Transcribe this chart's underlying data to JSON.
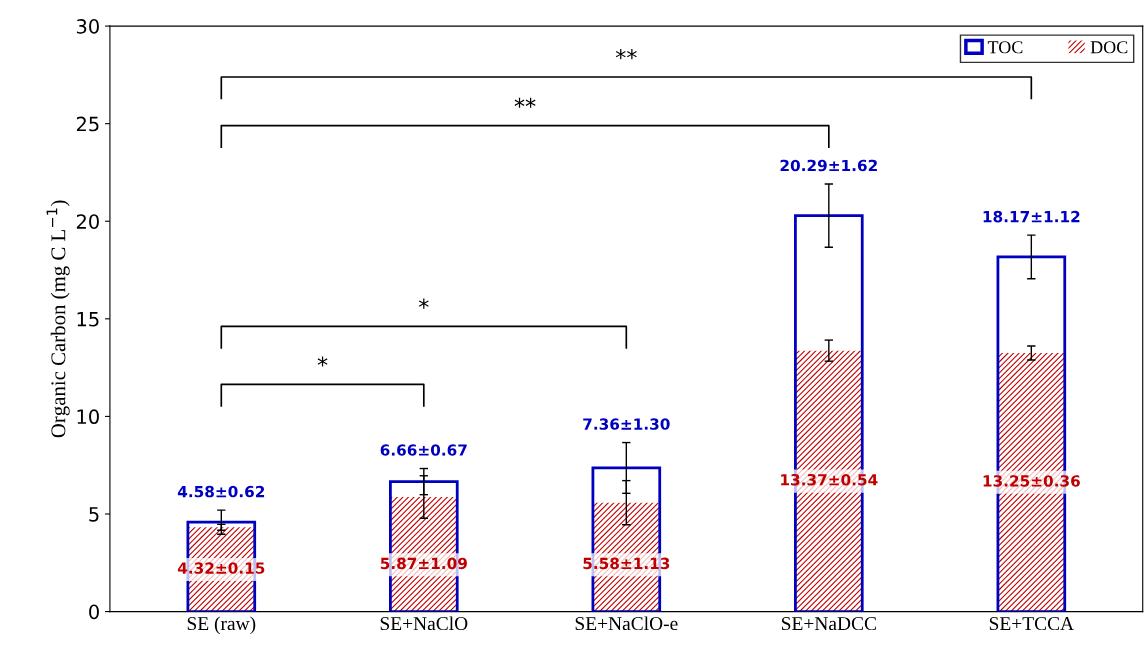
{
  "chart_data": {
    "type": "bar",
    "ylabel": "Organic Carbon (mg C L$^{−1}$)",
    "categories": [
      "SE (raw)",
      "SE+NaClO",
      "SE+NaClO-e",
      "SE+NaDCC",
      "SE+TCCA"
    ],
    "series": [
      {
        "name": "TOC",
        "color": "#0000c0",
        "values": [
          4.58,
          6.66,
          7.36,
          20.29,
          18.17
        ],
        "errors": [
          0.62,
          0.67,
          1.3,
          1.62,
          1.12
        ],
        "value_labels": [
          "4.58±0.62",
          "6.66±0.67",
          "7.36±1.30",
          "20.29±1.62",
          "18.17±1.12"
        ]
      },
      {
        "name": "DOC",
        "color": "#c00000",
        "values": [
          4.32,
          5.87,
          5.58,
          13.37,
          13.25
        ],
        "errors": [
          0.15,
          1.09,
          1.13,
          0.54,
          0.36
        ],
        "value_labels": [
          "4.32±0.15",
          "5.87±1.09",
          "5.58±1.13",
          "13.37±0.54",
          "13.25±0.36"
        ]
      }
    ],
    "ylim": [
      0,
      30
    ],
    "yticks": [
      0,
      5,
      10,
      15,
      20,
      25,
      30
    ],
    "annotations": [
      "*",
      "*",
      "**",
      "**"
    ],
    "legend": "top right",
    "grid": false
  }
}
